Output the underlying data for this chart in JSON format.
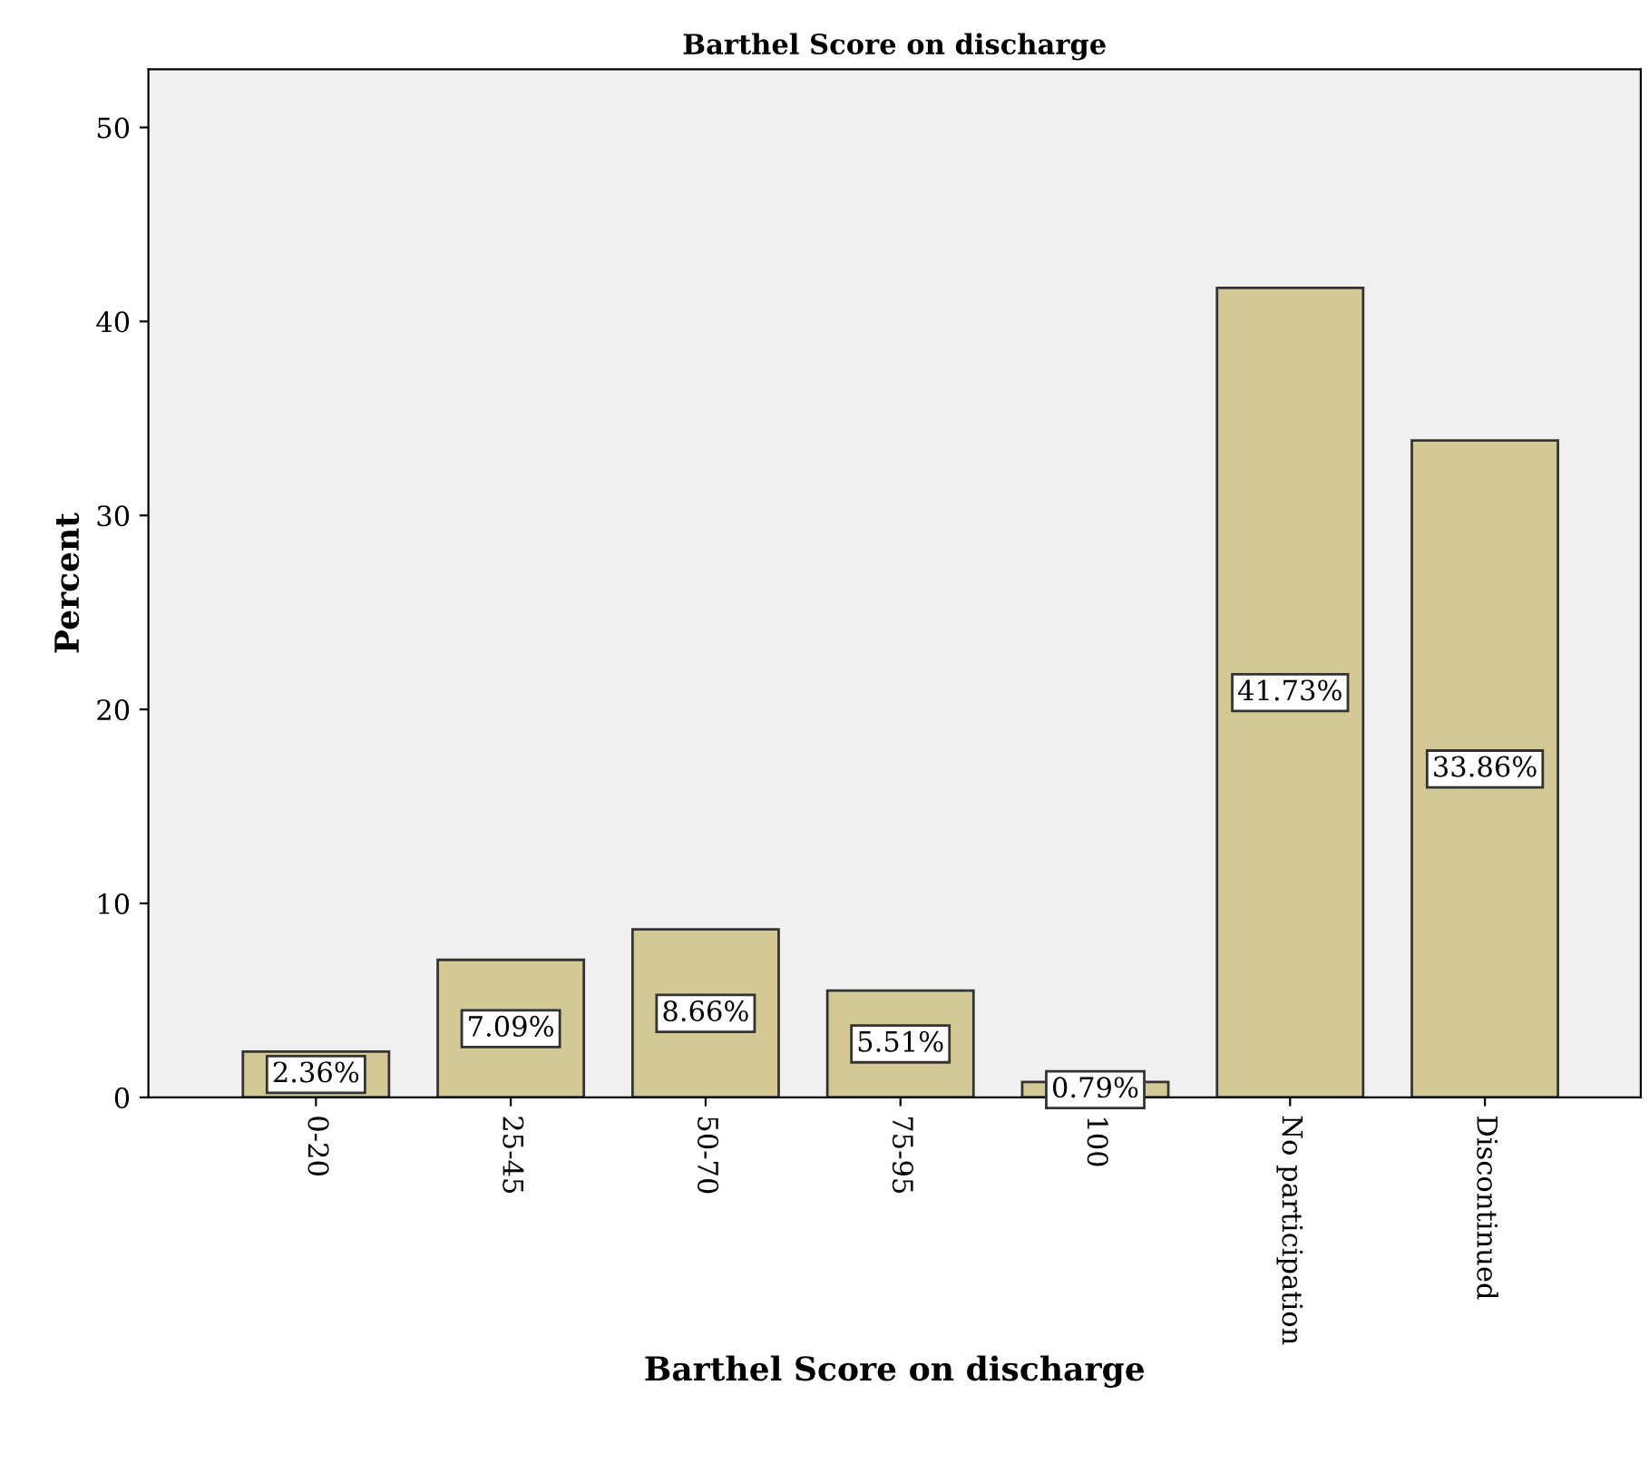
{
  "chart_data": {
    "type": "bar",
    "title": "Barthel Score on discharge",
    "xlabel": "Barthel Score on discharge",
    "ylabel": "Percent",
    "categories": [
      "0-20",
      "25-45",
      "50-70",
      "75-95",
      "100",
      "No participation",
      "Discontinued"
    ],
    "values": [
      2.36,
      7.09,
      8.66,
      5.51,
      0.79,
      41.73,
      33.86
    ],
    "value_labels": [
      "2.36%",
      "7.09%",
      "8.66%",
      "5.51%",
      "0.79%",
      "41.73%",
      "33.86%"
    ],
    "color": "#d3c995",
    "ylim": [
      0,
      53
    ],
    "yticks": [
      0,
      10,
      20,
      30,
      40,
      50
    ],
    "grid": false,
    "legend": false
  }
}
